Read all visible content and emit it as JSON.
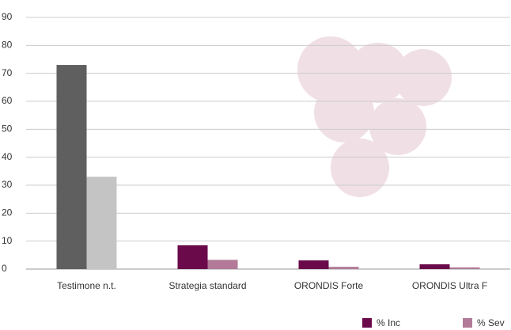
{
  "chart_data": {
    "type": "bar",
    "categories": [
      "Testimone n.t.",
      "Strategia standard",
      "ORONDIS Forte",
      "ORONDIS Ultra F"
    ],
    "series": [
      {
        "name": "% Inc",
        "color": "#6b0a4a",
        "colors": [
          "#5f5f5f",
          "#6b0a4a",
          "#6b0a4a",
          "#6b0a4a"
        ],
        "values": [
          73,
          8.5,
          3.1,
          1.7
        ]
      },
      {
        "name": "% Sev",
        "color": "#b27a98",
        "colors": [
          "#c4c4c4",
          "#b27a98",
          "#b27a98",
          "#b27a98"
        ],
        "values": [
          33,
          3.3,
          0.8,
          0.6
        ]
      }
    ],
    "ylim": [
      0,
      90
    ],
    "yticks": [
      0,
      10,
      20,
      30,
      40,
      50,
      60,
      70,
      80,
      90
    ],
    "grid": true,
    "legend": "bottom-right"
  }
}
